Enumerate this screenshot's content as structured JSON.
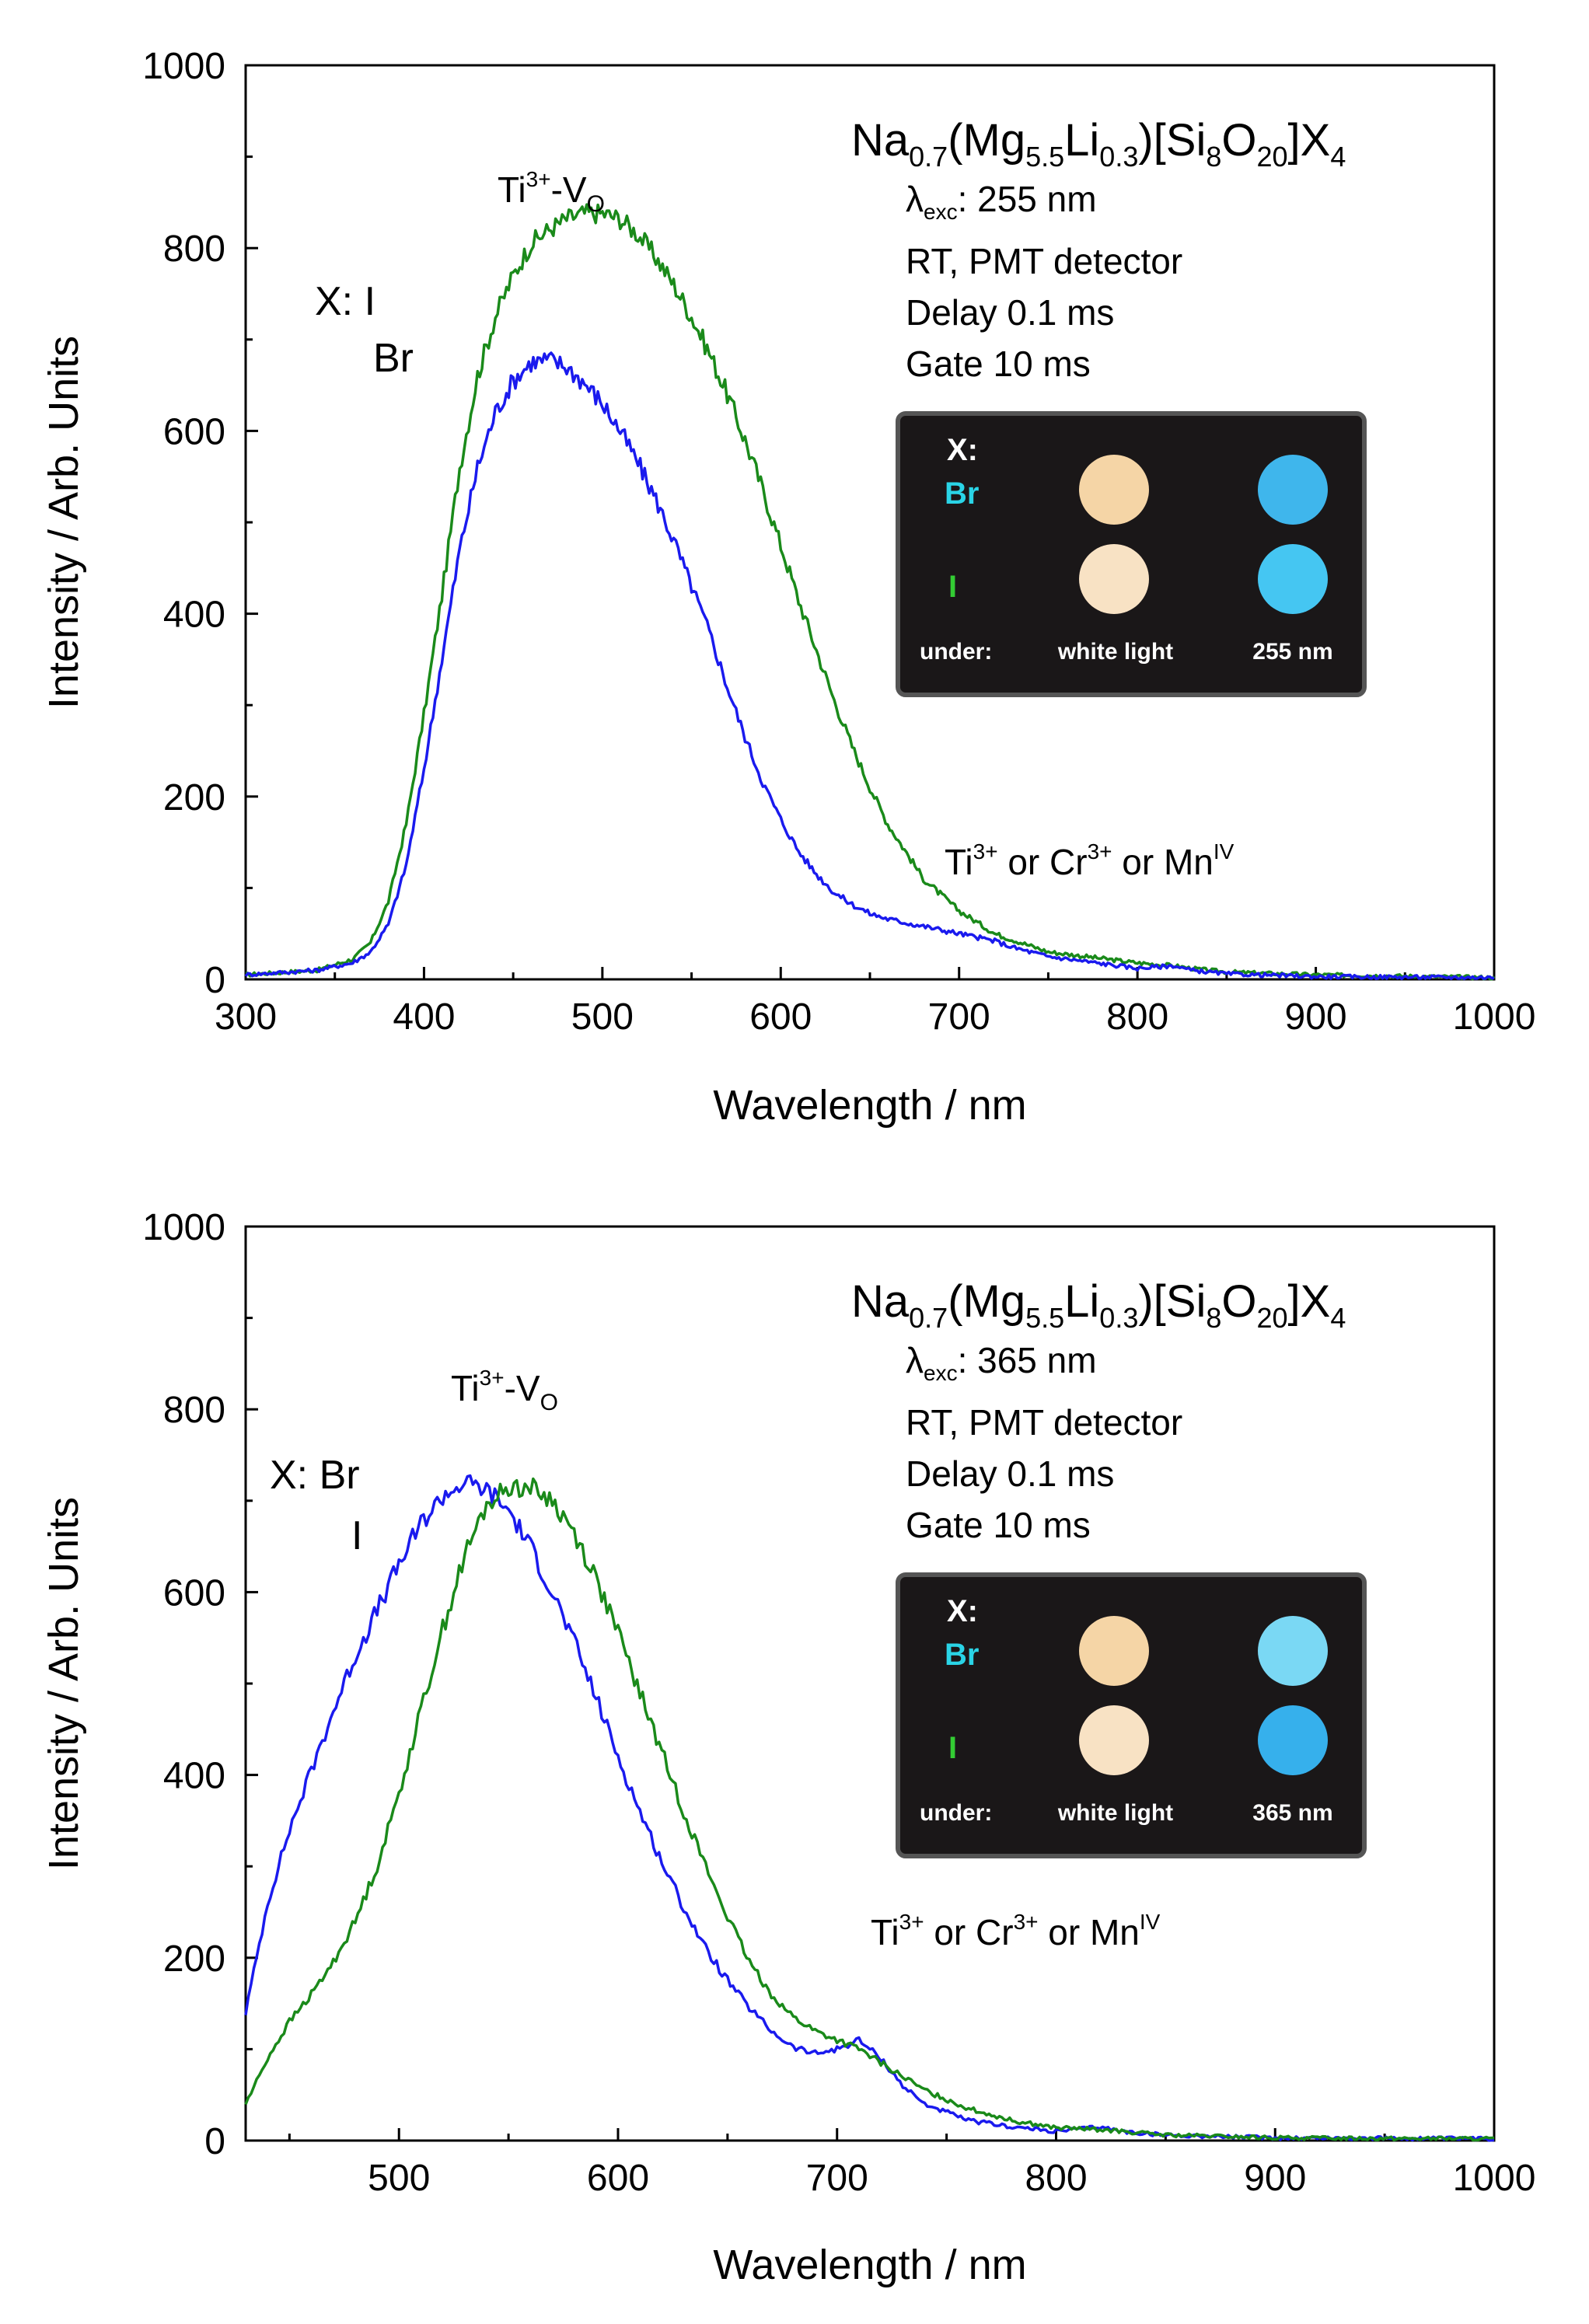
{
  "charts": [
    {
      "formula": {
        "na": "Na",
        "na_sub": "0.7",
        "open": "(Mg",
        "mg_sub": "5.5",
        "li": "Li",
        "li_sub": "0.3",
        "mid": ")[Si",
        "si_sub": "8",
        "o": "O",
        "o_sub": "20",
        "close": "]X",
        "x_sub": "4"
      },
      "excitation": {
        "lambda": "λ",
        "sub": "exc",
        "value": ": 255 nm"
      },
      "conditions": [
        "RT, PMT detector",
        "Delay 0.1 ms",
        "Gate 10 ms"
      ],
      "peak_label": {
        "base": "Ti",
        "sup": "3+",
        "rest": "-V",
        "sub": "O"
      },
      "impurity_label": {
        "ti": "Ti",
        "ti_sup": "3+",
        "or1": " or Cr",
        "cr_sup": "3+",
        "or2": " or Mn",
        "mn_sup": "IV"
      },
      "legend": {
        "first": "X: I",
        "second": "Br"
      },
      "inset": {
        "header": "X:",
        "row1": "Br",
        "row2": "I",
        "under": "under:",
        "col1": "white light",
        "col2": "255 nm"
      }
    },
    {
      "formula": {
        "na": "Na",
        "na_sub": "0.7",
        "open": "(Mg",
        "mg_sub": "5.5",
        "li": "Li",
        "li_sub": "0.3",
        "mid": ")[Si",
        "si_sub": "8",
        "o": "O",
        "o_sub": "20",
        "close": "]X",
        "x_sub": "4"
      },
      "excitation": {
        "lambda": "λ",
        "sub": "exc",
        "value": ": 365 nm"
      },
      "conditions": [
        "RT, PMT detector",
        "Delay 0.1 ms",
        "Gate 10 ms"
      ],
      "peak_label": {
        "base": "Ti",
        "sup": "3+",
        "rest": "-V",
        "sub": "O"
      },
      "impurity_label": {
        "ti": "Ti",
        "ti_sup": "3+",
        "or1": " or Cr",
        "cr_sup": "3+",
        "or2": " or Mn",
        "mn_sup": "IV"
      },
      "legend": {
        "first": "X: Br",
        "second": "I"
      },
      "inset": {
        "header": "X:",
        "row1": "Br",
        "row2": "I",
        "under": "under:",
        "col1": "white light",
        "col2": "365 nm"
      }
    }
  ],
  "colors": {
    "I": "#1a8a1a",
    "Br": "#1a1aee",
    "inset_bg": "#1a1718",
    "inset_border": "#555555",
    "br_label": "#2ad4e6",
    "i_label": "#33cc33",
    "cream1": "#f5d5a6",
    "cream2": "#f8e2c4",
    "blue1": "#3fb6ec",
    "blue2": "#45c6f2",
    "blue3": "#7ad8f4",
    "blue4": "#36b0ec"
  },
  "chart_data": [
    {
      "type": "line",
      "title": "",
      "xlabel": "Wavelength / nm",
      "ylabel": "Intensity / Arb. Units",
      "xlim": [
        300,
        1000
      ],
      "ylim": [
        0,
        1000
      ],
      "xticks": [
        300,
        400,
        500,
        600,
        700,
        800,
        900,
        1000
      ],
      "yticks": [
        0,
        200,
        400,
        600,
        800,
        1000
      ],
      "series": [
        {
          "name": "I",
          "x": [
            300,
            340,
            360,
            370,
            380,
            390,
            400,
            410,
            420,
            430,
            440,
            450,
            460,
            470,
            480,
            490,
            500,
            510,
            520,
            530,
            540,
            550,
            560,
            570,
            580,
            590,
            600,
            610,
            620,
            630,
            640,
            650,
            660,
            680,
            700,
            720,
            750,
            800,
            820,
            830,
            850,
            900,
            1000
          ],
          "y": [
            5,
            10,
            22,
            40,
            85,
            170,
            290,
            420,
            560,
            660,
            725,
            770,
            805,
            820,
            832,
            838,
            838,
            832,
            815,
            790,
            760,
            725,
            685,
            640,
            590,
            535,
            475,
            415,
            360,
            305,
            255,
            210,
            170,
            110,
            75,
            50,
            30,
            18,
            15,
            12,
            8,
            5,
            2
          ]
        },
        {
          "name": "Br",
          "x": [
            300,
            340,
            360,
            370,
            380,
            390,
            400,
            410,
            420,
            430,
            440,
            450,
            460,
            470,
            480,
            490,
            500,
            510,
            520,
            530,
            540,
            550,
            560,
            570,
            580,
            590,
            600,
            610,
            620,
            630,
            640,
            650,
            660,
            680,
            700,
            720,
            730,
            750,
            800,
            820,
            830,
            850,
            900,
            1000
          ],
          "y": [
            5,
            10,
            18,
            30,
            60,
            125,
            230,
            350,
            470,
            560,
            620,
            655,
            675,
            678,
            670,
            652,
            630,
            600,
            565,
            525,
            480,
            430,
            380,
            320,
            265,
            215,
            175,
            140,
            115,
            95,
            82,
            72,
            66,
            58,
            50,
            42,
            35,
            25,
            12,
            15,
            10,
            6,
            3,
            2
          ]
        }
      ]
    },
    {
      "type": "line",
      "title": "",
      "xlabel": "Wavelength / nm",
      "ylabel": "Intensity / Arb. Units",
      "xlim": [
        430,
        1000
      ],
      "ylim": [
        0,
        1000
      ],
      "xticks": [
        500,
        600,
        700,
        800,
        900,
        1000
      ],
      "yticks": [
        0,
        200,
        400,
        600,
        800,
        1000
      ],
      "series": [
        {
          "name": "Br",
          "x": [
            430,
            440,
            450,
            460,
            470,
            480,
            490,
            500,
            510,
            520,
            530,
            540,
            550,
            560,
            570,
            580,
            590,
            600,
            610,
            620,
            630,
            640,
            650,
            660,
            670,
            680,
            690,
            700,
            710,
            720,
            730,
            740,
            760,
            780,
            800,
            820,
            830,
            850,
            900,
            1000
          ],
          "y": [
            140,
            260,
            340,
            405,
            470,
            530,
            580,
            630,
            675,
            705,
            720,
            712,
            690,
            650,
            600,
            545,
            485,
            420,
            360,
            305,
            255,
            210,
            175,
            145,
            120,
            102,
            95,
            100,
            110,
            90,
            60,
            40,
            22,
            15,
            10,
            15,
            10,
            6,
            3,
            2
          ]
        },
        {
          "name": "I",
          "x": [
            430,
            440,
            450,
            460,
            470,
            480,
            490,
            500,
            510,
            520,
            530,
            540,
            550,
            560,
            570,
            580,
            590,
            600,
            610,
            620,
            630,
            640,
            650,
            660,
            670,
            680,
            690,
            700,
            710,
            720,
            730,
            740,
            760,
            780,
            800,
            820,
            830,
            850,
            900,
            1000
          ],
          "y": [
            40,
            90,
            130,
            160,
            195,
            240,
            300,
            380,
            470,
            560,
            640,
            695,
            715,
            715,
            700,
            665,
            615,
            555,
            490,
            425,
            360,
            300,
            245,
            195,
            160,
            135,
            120,
            110,
            100,
            85,
            70,
            55,
            35,
            22,
            14,
            12,
            10,
            6,
            3,
            2
          ]
        }
      ]
    }
  ]
}
